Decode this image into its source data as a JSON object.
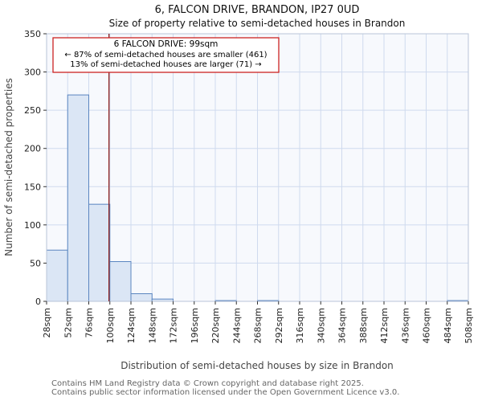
{
  "page": {
    "title": "6, FALCON DRIVE, BRANDON, IP27 0UD",
    "subtitle": "Size of property relative to semi-detached houses in Brandon"
  },
  "chart_data": {
    "type": "bar",
    "title": "6, FALCON DRIVE, BRANDON, IP27 0UD",
    "subtitle": "Size of property relative to semi-detached houses in Brandon",
    "xlabel": "Distribution of semi-detached houses by size in Brandon",
    "ylabel": "Number of semi-detached properties",
    "categories": [
      "28sqm",
      "52sqm",
      "76sqm",
      "100sqm",
      "124sqm",
      "148sqm",
      "172sqm",
      "196sqm",
      "220sqm",
      "244sqm",
      "268sqm",
      "292sqm",
      "316sqm",
      "340sqm",
      "364sqm",
      "388sqm",
      "412sqm",
      "436sqm",
      "460sqm",
      "484sqm",
      "508sqm"
    ],
    "bin_start_sqm": 28,
    "bin_width_sqm": 24,
    "values": [
      67,
      270,
      127,
      52,
      10,
      3,
      0,
      0,
      1,
      0,
      1,
      0,
      0,
      0,
      0,
      0,
      0,
      0,
      0,
      1
    ],
    "ylim": [
      0,
      350
    ],
    "yticks": [
      0,
      50,
      100,
      150,
      200,
      250,
      300,
      350
    ],
    "grid": true,
    "legend": "none",
    "marker": {
      "value_sqm": 99,
      "label": "6 FALCON DRIVE: 99sqm",
      "smaller_line": "← 87% of semi-detached houses are smaller (461)",
      "larger_line": "13% of semi-detached houses are larger (71) →"
    },
    "colors": {
      "bar_fill": "#dbe6f5",
      "bar_border": "#5b85c0",
      "grid": "#cfdaee",
      "plot_bg": "#f7f9fd",
      "frame": "#b8c4d8",
      "tick": "#333333",
      "marker_line": "#8b1f1f",
      "annotation_border": "#cc2222",
      "annotation_bg": "#ffffff"
    }
  },
  "footer": {
    "line1": "Contains HM Land Registry data © Crown copyright and database right 2025.",
    "line2": "Contains public sector information licensed under the Open Government Licence v3.0."
  }
}
